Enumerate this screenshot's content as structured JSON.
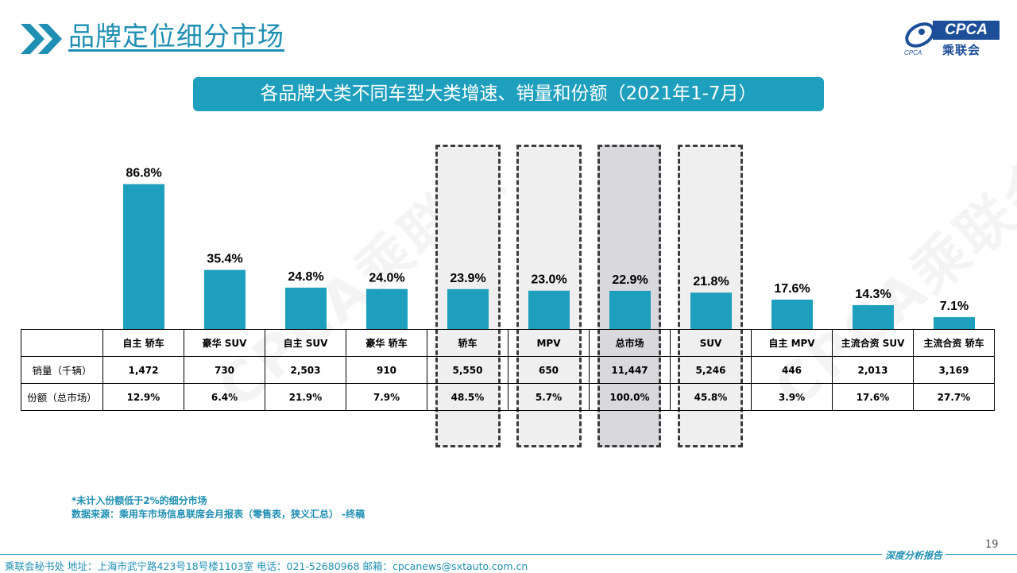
{
  "header": {
    "title": "品牌定位细分市场",
    "logo_text": "CPCA",
    "logo_cn": "乘联会",
    "logo_sub": "CPCA"
  },
  "banner": "各品牌大类不同车型大类增速、销量和份额（2021年1-7月）",
  "watermark": "CPCA乘联会",
  "colors": {
    "bar": "#1d9fbd",
    "title": "#1f8fb3",
    "highlight_box": "#efefef",
    "total_box": "#d9d8dd"
  },
  "chart_data": {
    "type": "bar",
    "categories": [
      "自主 轿车",
      "豪华 SUV",
      "自主 SUV",
      "豪华 轿车",
      "轿车",
      "MPV",
      "总市场",
      "SUV",
      "自主 MPV",
      "主流合资 SUV",
      "主流合资 轿车"
    ],
    "series": [
      {
        "values": [
          86.8,
          35.4,
          24.8,
          24.0,
          23.9,
          23.0,
          22.9,
          21.8,
          17.6,
          14.3,
          7.1
        ]
      }
    ],
    "value_labels": [
      "86.8%",
      "35.4%",
      "24.8%",
      "24.0%",
      "23.9%",
      "23.0%",
      "22.9%",
      "21.8%",
      "17.6%",
      "14.3%",
      "7.1%"
    ],
    "highlighted_categories": [
      "轿车",
      "MPV",
      "总市场",
      "SUV"
    ],
    "ylim": [
      0,
      100
    ],
    "grid": false
  },
  "table": {
    "rows": [
      {
        "label": "销量（千辆）",
        "values": [
          "1,472",
          "730",
          "2,503",
          "910",
          "5,550",
          "650",
          "11,447",
          "5,246",
          "446",
          "2,013",
          "3,169"
        ]
      },
      {
        "label": "份额（总市场）",
        "values": [
          "12.9%",
          "6.4%",
          "21.9%",
          "7.9%",
          "48.5%",
          "5.7%",
          "100.0%",
          "45.8%",
          "3.9%",
          "17.6%",
          "27.7%"
        ]
      }
    ]
  },
  "notes": {
    "line1": "*未计入份额低于2%的细分市场",
    "line2": "数据来源：乘用车市场信息联席会月报表（零售表，狭义汇总） -终稿"
  },
  "page_number": "19",
  "footer": {
    "right": "深度分析报告",
    "address": "乘联会秘书处   地址：上海市武宁路423号18号楼1103室  电话：021-52680968   邮箱：cpcanews@sxtauto.com.cn"
  }
}
